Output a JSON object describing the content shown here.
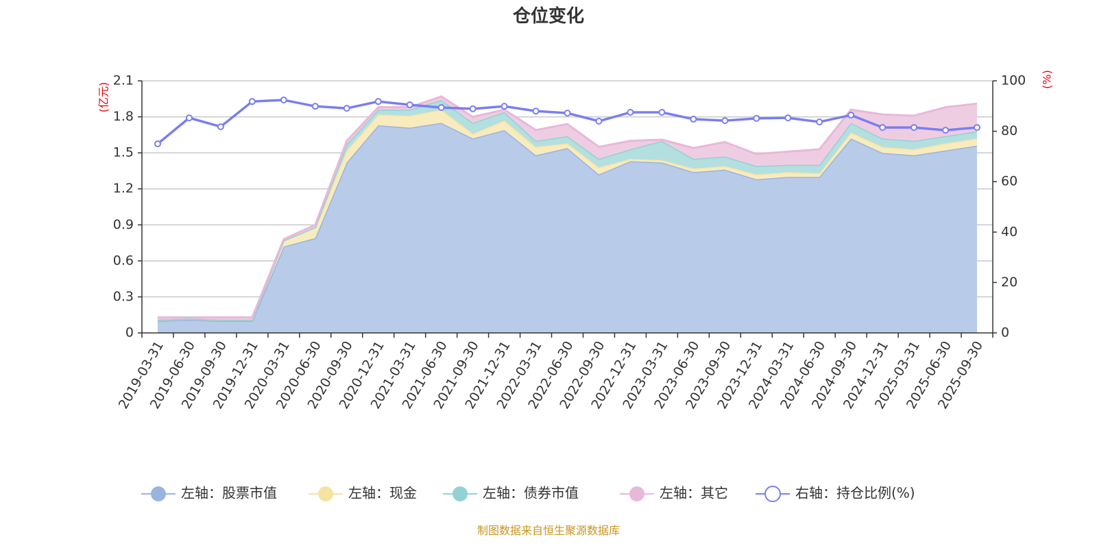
{
  "chart_data": {
    "type": "area",
    "title": "仓位变化",
    "left_axis_unit": "(亿元)",
    "right_axis_unit": "(%)",
    "ylim_left": [
      0,
      2.1
    ],
    "yticks_left": [
      "0",
      "0.3",
      "0.6",
      "0.9",
      "1.2",
      "1.5",
      "1.8",
      "2.1"
    ],
    "ylim_right": [
      0,
      100
    ],
    "yticks_right": [
      "0",
      "20",
      "40",
      "60",
      "80",
      "100"
    ],
    "grid": true,
    "stacked": true,
    "legend_position": "bottom",
    "categories": [
      "2019-03-31",
      "2019-06-30",
      "2019-09-30",
      "2019-12-31",
      "2020-03-31",
      "2020-06-30",
      "2020-09-30",
      "2020-12-31",
      "2021-03-31",
      "2021-06-30",
      "2021-09-30",
      "2021-12-31",
      "2022-03-31",
      "2022-06-30",
      "2022-09-30",
      "2022-12-31",
      "2023-03-31",
      "2023-06-30",
      "2023-09-30",
      "2023-12-31",
      "2024-03-31",
      "2024-06-30",
      "2024-09-30",
      "2024-12-31",
      "2025-03-31",
      "2025-06-30",
      "2025-09-30"
    ],
    "series": [
      {
        "name": "左轴：股票市值",
        "axis": "left",
        "color": "#9ab4e0",
        "fill": "#b8cbe9",
        "values": [
          0.1,
          0.11,
          0.1,
          0.1,
          0.72,
          0.79,
          1.42,
          1.73,
          1.71,
          1.75,
          1.62,
          1.69,
          1.48,
          1.54,
          1.32,
          1.43,
          1.42,
          1.34,
          1.36,
          1.28,
          1.3,
          1.3,
          1.62,
          1.5,
          1.48,
          1.52,
          1.56
        ]
      },
      {
        "name": "左轴：现金",
        "axis": "left",
        "color": "#f5e3a0",
        "fill": "#f8ebbd",
        "values": [
          0.01,
          0.01,
          0.01,
          0.01,
          0.05,
          0.09,
          0.1,
          0.09,
          0.1,
          0.11,
          0.04,
          0.08,
          0.07,
          0.04,
          0.06,
          0.02,
          0.02,
          0.03,
          0.03,
          0.04,
          0.04,
          0.03,
          0.05,
          0.05,
          0.05,
          0.06,
          0.06
        ]
      },
      {
        "name": "左轴：债券市值",
        "axis": "left",
        "color": "#93d2d2",
        "fill": "#b3dfe0",
        "values": [
          0.0,
          0.0,
          0.0,
          0.0,
          0.0,
          0.0,
          0.05,
          0.04,
          0.05,
          0.08,
          0.09,
          0.07,
          0.05,
          0.06,
          0.07,
          0.08,
          0.16,
          0.08,
          0.08,
          0.07,
          0.06,
          0.07,
          0.08,
          0.07,
          0.07,
          0.06,
          0.06
        ]
      },
      {
        "name": "左轴：其它",
        "axis": "left",
        "color": "#e8b8d8",
        "fill": "#eecde3",
        "values": [
          0.02,
          0.01,
          0.02,
          0.02,
          0.01,
          0.02,
          0.03,
          0.02,
          0.02,
          0.03,
          0.05,
          0.02,
          0.09,
          0.1,
          0.1,
          0.07,
          0.01,
          0.09,
          0.12,
          0.1,
          0.11,
          0.13,
          0.11,
          0.2,
          0.21,
          0.24,
          0.23
        ]
      },
      {
        "name": "右轴：持仓比例(%)",
        "axis": "right",
        "color": "#7a7ef0",
        "values": [
          75.0,
          85.3,
          81.8,
          91.8,
          92.4,
          89.9,
          89.1,
          91.8,
          90.5,
          89.4,
          88.9,
          89.9,
          88.0,
          87.2,
          84.0,
          87.5,
          87.5,
          84.8,
          84.2,
          85.1,
          85.3,
          83.7,
          86.4,
          81.5,
          81.5,
          80.4,
          81.5
        ]
      }
    ]
  },
  "footer": "制图数据来自恒生聚源数据库"
}
